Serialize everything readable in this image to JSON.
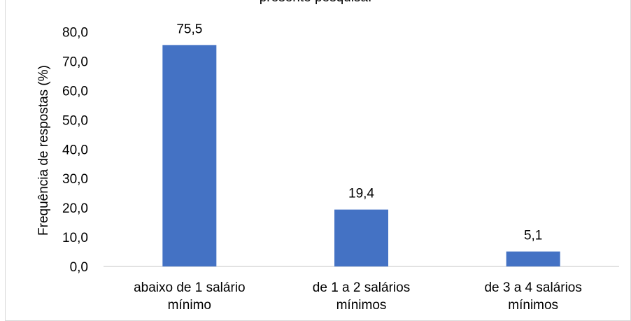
{
  "chart_data": {
    "type": "bar",
    "title": "presente pesquisa.",
    "ylabel": "Frequência de respostas (%)",
    "xlabel": "",
    "ylim": [
      0,
      80
    ],
    "yticks": [
      "0,0",
      "10,0",
      "20,0",
      "30,0",
      "40,0",
      "50,0",
      "60,0",
      "70,0",
      "80,0"
    ],
    "categories": [
      [
        "abaixo de 1 salário",
        "mínimo"
      ],
      [
        "de 1 a 2 salários",
        "mínimos"
      ],
      [
        "de 3 a 4 salários",
        "mínimos"
      ]
    ],
    "values": [
      75.5,
      19.4,
      5.1
    ],
    "data_labels": [
      "75,5",
      "19,4",
      "5,1"
    ],
    "bar_color": "#4472c4",
    "grid": false,
    "legend": "none"
  }
}
